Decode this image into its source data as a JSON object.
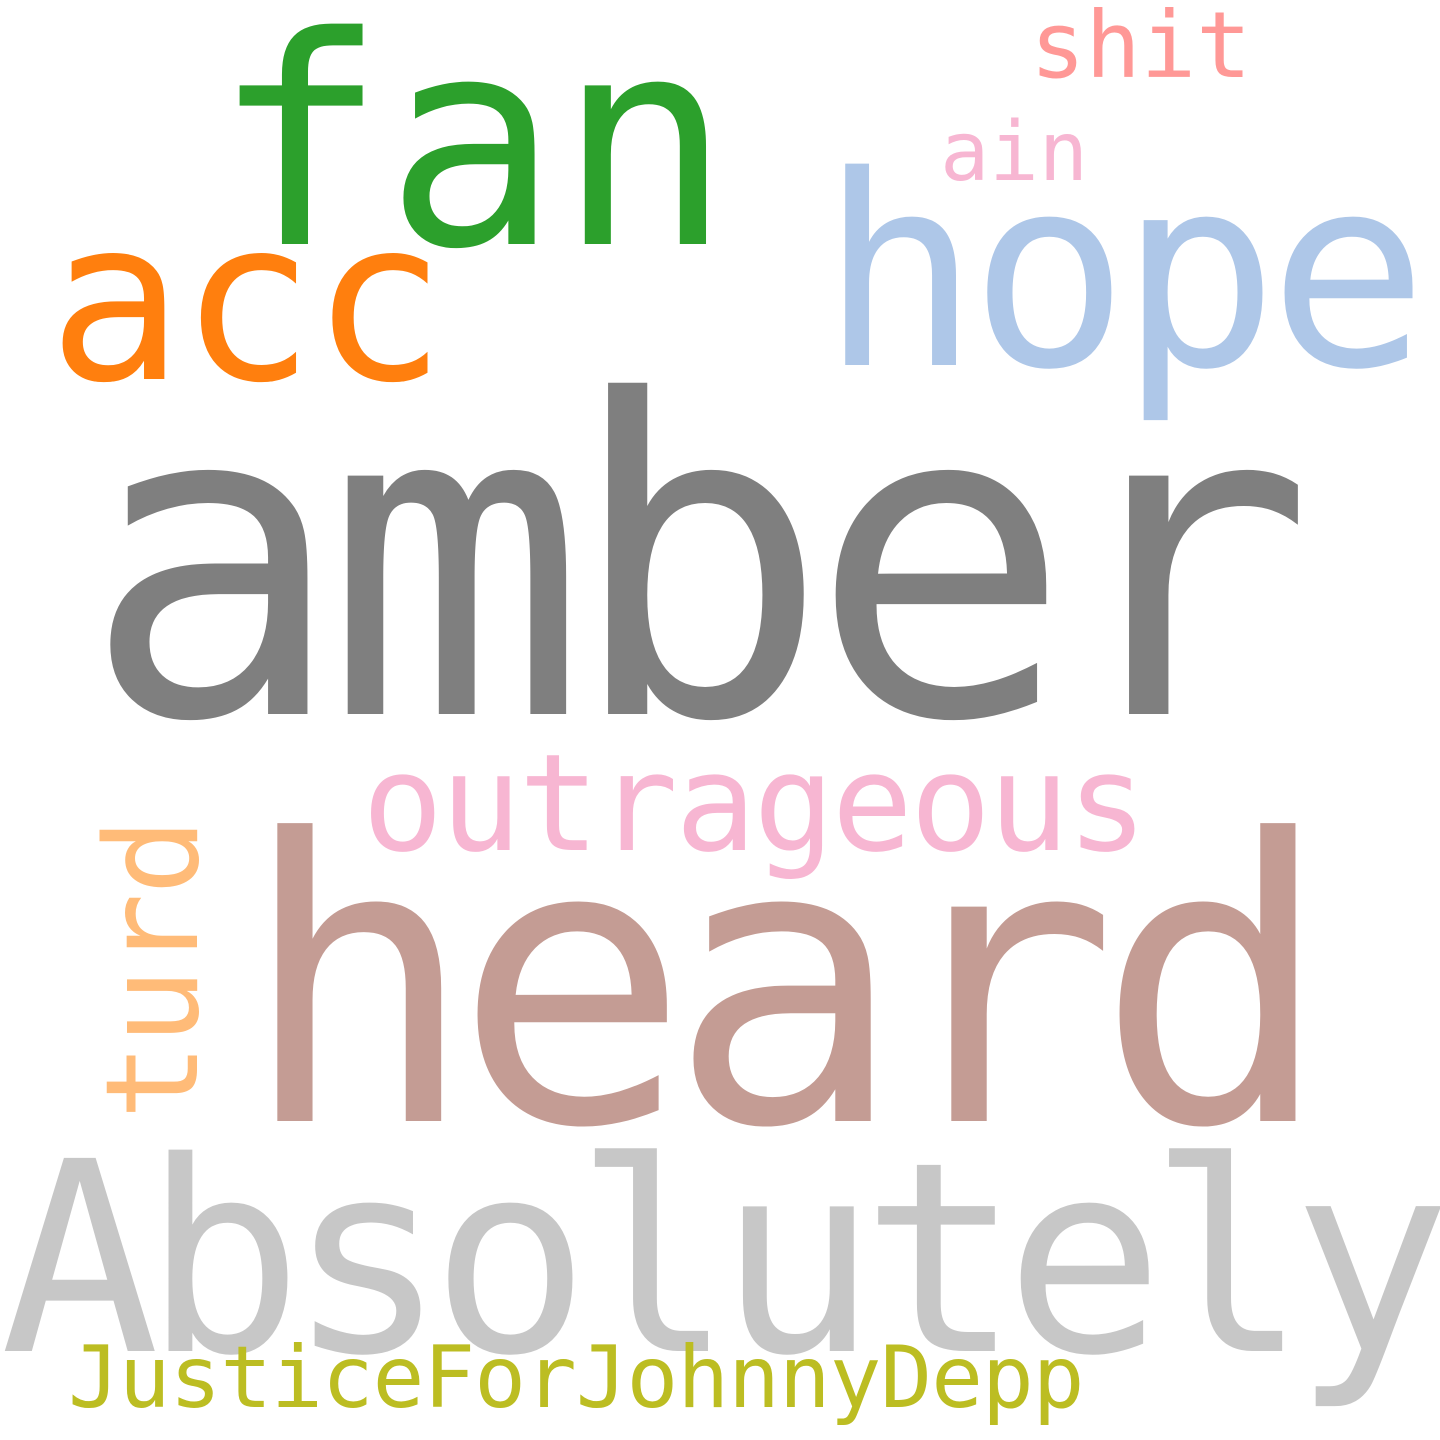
{
  "words": {
    "amber": {
      "text": "amber",
      "color": "#7f7f7f"
    },
    "heard": {
      "text": "heard",
      "color": "#c49c94"
    },
    "absolutely": {
      "text": "Absolutely",
      "color": "#c7c7c7"
    },
    "hope": {
      "text": "hope",
      "color": "#aec7e8"
    },
    "fan": {
      "text": "fan",
      "color": "#2ca02c"
    },
    "acc": {
      "text": "acc",
      "color": "#ff7f0e"
    },
    "outrageous": {
      "text": "outrageous",
      "color": "#f7b6d2"
    },
    "turd": {
      "text": "turd",
      "color": "#ffbb78"
    },
    "justice": {
      "text": "JusticeForJohnnyDepp",
      "color": "#bcbd22"
    },
    "shit": {
      "text": "shit",
      "color": "#ff9896"
    },
    "ain": {
      "text": "ain",
      "color": "#f7b6d2"
    }
  }
}
